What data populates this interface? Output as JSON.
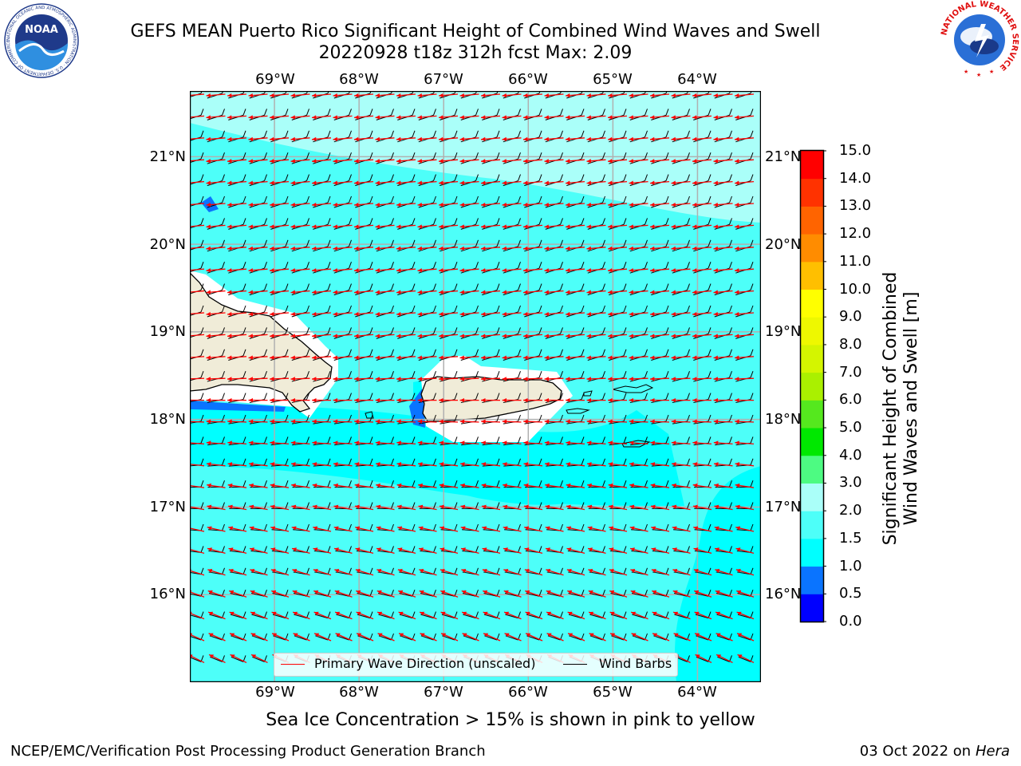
{
  "title": {
    "line1": "GEFS MEAN Puerto Rico Significant Height of Combined Wind Waves and Swell",
    "line2": "20220928 t18z 312h fcst   Max: 2.09"
  },
  "map": {
    "lon_labels": [
      "69°W",
      "68°W",
      "67°W",
      "66°W",
      "65°W",
      "64°W"
    ],
    "lat_labels": [
      "21°N",
      "20°N",
      "19°N",
      "18°N",
      "17°N",
      "16°N"
    ],
    "extent": {
      "lon_min": -70,
      "lon_max": -63.25,
      "lat_min": 15,
      "lat_max": 21.75
    },
    "colors": {
      "land": "#f0ecd8",
      "coast": "#000000",
      "grid": "#b0b0b0",
      "wave_arrow": "#ff0000",
      "wind_barb": "#000000"
    }
  },
  "colorbar": {
    "label_line1": "Significant Height of Combined",
    "label_line2": "Wind Waves and Swell [m]",
    "ticks": [
      "15.0",
      "14.0",
      "13.0",
      "12.0",
      "11.0",
      "10.0",
      "9.0",
      "8.0",
      "7.0",
      "6.0",
      "5.0",
      "4.0",
      "3.0",
      "2.0",
      "1.5",
      "1.0",
      "0.5",
      "0.0"
    ],
    "bins": [
      {
        "lo": 0.0,
        "hi": 0.5,
        "color": "#0000ff"
      },
      {
        "lo": 0.5,
        "hi": 1.0,
        "color": "#0a74ff"
      },
      {
        "lo": 1.0,
        "hi": 1.5,
        "color": "#00ffff"
      },
      {
        "lo": 1.5,
        "hi": 2.0,
        "color": "#4dfff9"
      },
      {
        "lo": 2.0,
        "hi": 3.0,
        "color": "#aafff9"
      },
      {
        "lo": 3.0,
        "hi": 4.0,
        "color": "#4dfb82"
      },
      {
        "lo": 4.0,
        "hi": 5.0,
        "color": "#00e800"
      },
      {
        "lo": 5.0,
        "hi": 6.0,
        "color": "#55e81e"
      },
      {
        "lo": 6.0,
        "hi": 7.0,
        "color": "#aaf000"
      },
      {
        "lo": 7.0,
        "hi": 8.0,
        "color": "#d4f500"
      },
      {
        "lo": 8.0,
        "hi": 9.0,
        "color": "#eef800"
      },
      {
        "lo": 9.0,
        "hi": 10.0,
        "color": "#ffff00"
      },
      {
        "lo": 10.0,
        "hi": 11.0,
        "color": "#ffbf00"
      },
      {
        "lo": 11.0,
        "hi": 12.0,
        "color": "#ff8c00"
      },
      {
        "lo": 12.0,
        "hi": 13.0,
        "color": "#ff6400"
      },
      {
        "lo": 13.0,
        "hi": 14.0,
        "color": "#ff3200"
      },
      {
        "lo": 14.0,
        "hi": 15.0,
        "color": "#ff0000"
      }
    ]
  },
  "legend": {
    "wave_label": "Primary Wave Direction (unscaled)",
    "wind_label": "Wind Barbs"
  },
  "note": "Sea Ice Concentration > 15% is shown in pink to yellow",
  "footer": {
    "left": "NCEP/EMC/Verification Post Processing Product Generation Branch",
    "right_prefix": "03 Oct 2022 on ",
    "right_host": "Hera"
  },
  "logos": {
    "noaa": {
      "text": "NOAA",
      "ring_text": "NATIONAL OCEANIC AND ATMOSPHERIC ADMINISTRATION · U.S. DEPARTMENT OF COMMERCE"
    },
    "nws": {
      "ring_text": "NATIONAL WEATHER SERVICE"
    }
  }
}
